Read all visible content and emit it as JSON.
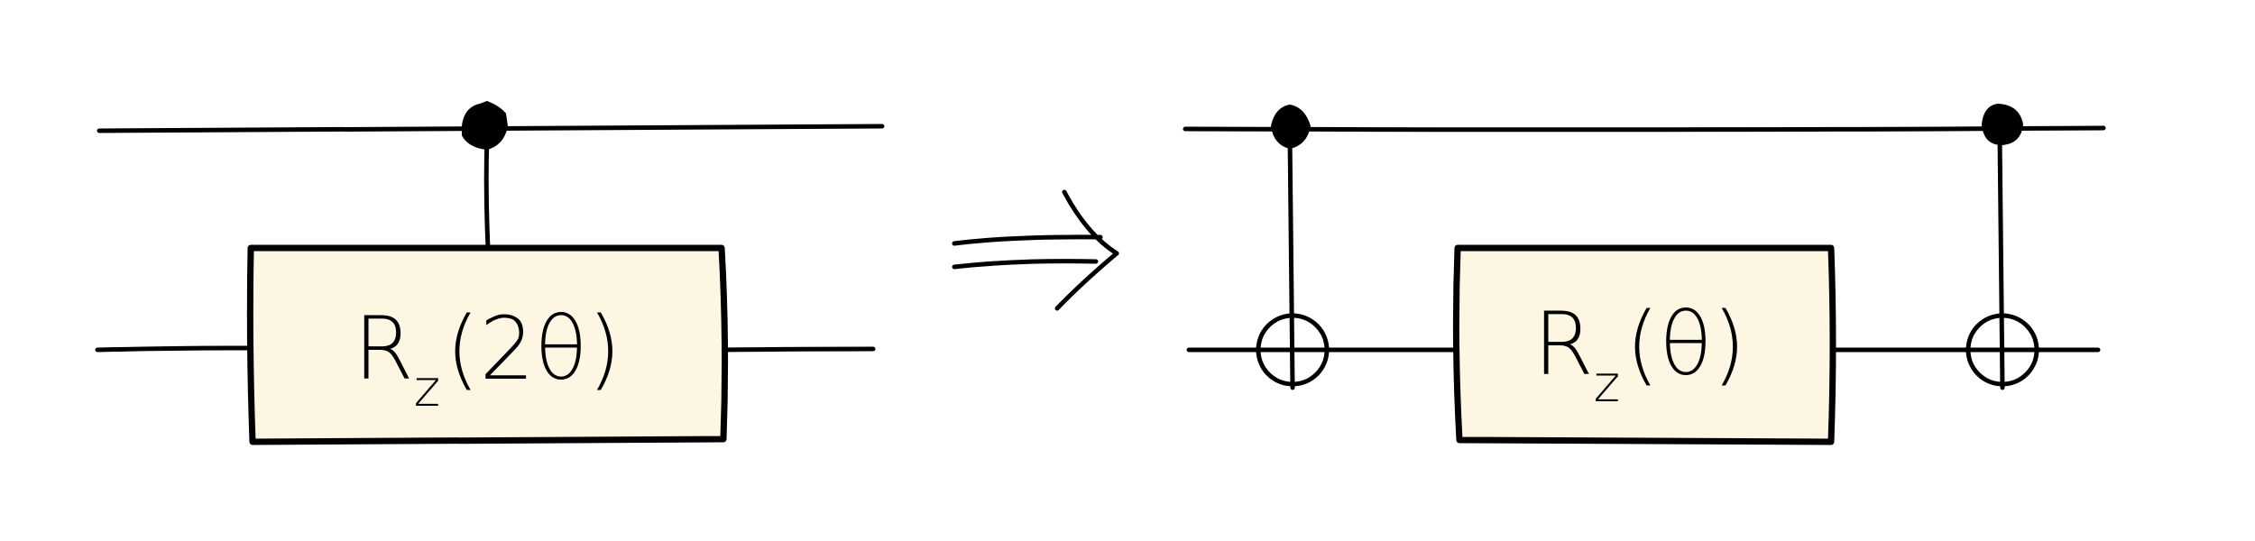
{
  "left_circuit": {
    "gate": {
      "base": "R",
      "subscript": "z",
      "argument": "(2θ)"
    }
  },
  "right_circuit": {
    "gate": {
      "base": "R",
      "subscript": "z",
      "argument": "(θ)"
    }
  },
  "colors": {
    "gate_fill": "#fdf6e3",
    "stroke": "#000000",
    "background": "#ffffff"
  },
  "icons": {
    "transform_arrow": "double-arrow-right-icon",
    "control": "control-dot-icon",
    "target": "cnot-target-icon"
  }
}
